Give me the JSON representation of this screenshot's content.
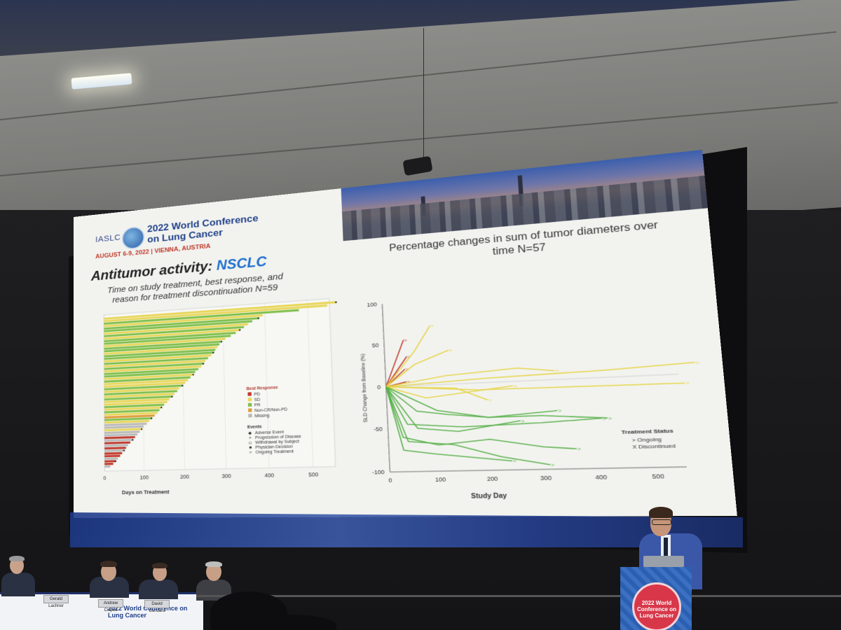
{
  "slide": {
    "iaslc": "IASLC",
    "conference_title": "2022 World Conference on Lung Cancer",
    "conference_date": "AUGUST 6-9, 2022 | VIENNA, AUSTRIA",
    "title_main": "Antitumor activity: ",
    "title_accent": "NSCLC",
    "left_subtitle": "Time on study treatment, best response, and reason for treatment discontinuation N=59",
    "right_subtitle": "Percentage changes in sum of tumor diameters over time N=57"
  },
  "chart_data": [
    {
      "type": "bar",
      "title": "Time on study treatment, best response, and reason for treatment discontinuation N=59",
      "xlabel": "Days on Treatment",
      "xlim": [
        0,
        550
      ],
      "x_ticks": [
        "0",
        "100",
        "200",
        "300",
        "400",
        "500"
      ],
      "legend_title_response": "Best Response",
      "legend_response": [
        {
          "label": "PD",
          "color": "#c0392b"
        },
        {
          "label": "SD",
          "color": "#e8d65a"
        },
        {
          "label": "PR",
          "color": "#7fbf4d"
        },
        {
          "label": "Non-CR/Non-PD",
          "color": "#e09a3a"
        },
        {
          "label": "Missing",
          "color": "#b9b9b9"
        }
      ],
      "legend_title_events": "Events",
      "legend_events": [
        {
          "symbol": "◆",
          "label": "Adverse Event"
        },
        {
          "symbol": "×",
          "label": "Progression of Disease"
        },
        {
          "symbol": "◇",
          "label": "Withdrawal by Subject"
        },
        {
          "symbol": "■",
          "label": "Physician Decision"
        },
        {
          "symbol": ">",
          "label": "Ongoing Treatment"
        }
      ],
      "bars_days": [
        565,
        545,
        480,
        395,
        385,
        370,
        360,
        350,
        340,
        330,
        318,
        305,
        295,
        290,
        285,
        280,
        275,
        270,
        262,
        255,
        250,
        245,
        238,
        230,
        225,
        218,
        212,
        205,
        198,
        190,
        185,
        178,
        172,
        165,
        160,
        152,
        145,
        140,
        135,
        128,
        120,
        114,
        108,
        100,
        95,
        90,
        84,
        78,
        72,
        66,
        60,
        55,
        50,
        45,
        40,
        34,
        28,
        22,
        15
      ],
      "bars_response": [
        "SD",
        "SD",
        "PR",
        "SD",
        "PR",
        "PR",
        "SD",
        "PR",
        "SD",
        "PR",
        "PR",
        "SD",
        "PR",
        "PR",
        "SD",
        "PR",
        "PR",
        "SD",
        "PR",
        "SD",
        "PR",
        "SD",
        "PR",
        "PR",
        "SD",
        "PR",
        "SD",
        "SD",
        "PR",
        "SD",
        "PR",
        "SD",
        "PR",
        "SD",
        "SD",
        "PR",
        "SD",
        "PR",
        "SD",
        "Non-CR/Non-PD",
        "PR",
        "SD",
        "Missing",
        "Missing",
        "SD",
        "Missing",
        "Missing",
        "PD",
        "Missing",
        "PD",
        "Missing",
        "PD",
        "Missing",
        "PD",
        "PD",
        "Missing",
        "PD",
        "PD",
        "Missing"
      ]
    },
    {
      "type": "line",
      "title": "Percentage changes in sum of tumor diameters over time N=57",
      "xlabel": "Study Day",
      "ylabel": "SLD Change from Baseline (%)",
      "xlim": [
        0,
        550
      ],
      "ylim": [
        -100,
        100
      ],
      "x_ticks": [
        "0",
        "100",
        "200",
        "300",
        "400",
        "500"
      ],
      "y_ticks": [
        "100",
        "50",
        "0",
        "-50",
        "-100"
      ],
      "legend_title": "Treatment Status",
      "legend_entries": [
        "> Ongoing",
        "X Discontinued"
      ],
      "series": [
        {
          "status": "PD",
          "x": [
            0,
            40
          ],
          "y": [
            0,
            55
          ]
        },
        {
          "status": "PD",
          "x": [
            0,
            45
          ],
          "y": [
            0,
            35
          ]
        },
        {
          "status": "PD",
          "x": [
            0,
            40
          ],
          "y": [
            0,
            20
          ]
        },
        {
          "status": "PD",
          "x": [
            0,
            42
          ],
          "y": [
            0,
            5
          ]
        },
        {
          "status": "SD",
          "x": [
            0,
            60,
            95
          ],
          "y": [
            0,
            40,
            70
          ]
        },
        {
          "status": "SD",
          "x": [
            0,
            60,
            130
          ],
          "y": [
            0,
            25,
            40
          ]
        },
        {
          "status": "SD",
          "x": [
            0,
            120,
            260,
            330
          ],
          "y": [
            0,
            10,
            15,
            10
          ]
        },
        {
          "status": "SD",
          "x": [
            0,
            200,
            420,
            580
          ],
          "y": [
            0,
            5,
            8,
            12
          ]
        },
        {
          "status": "SD",
          "x": [
            0,
            180,
            560
          ],
          "y": [
            0,
            -8,
            -10
          ]
        },
        {
          "status": "SD",
          "x": [
            0,
            140,
            200
          ],
          "y": [
            0,
            -5,
            -20
          ]
        },
        {
          "status": "SD",
          "x": [
            0,
            80,
            250
          ],
          "y": [
            0,
            -15,
            -5
          ]
        },
        {
          "status": "PR",
          "x": [
            0,
            60,
            120,
            200,
            300,
            420
          ],
          "y": [
            0,
            -30,
            -35,
            -40,
            -40,
            -45
          ]
        },
        {
          "status": "PR",
          "x": [
            0,
            40,
            150,
            300,
            410
          ],
          "y": [
            0,
            -45,
            -50,
            -48,
            -45
          ]
        },
        {
          "status": "PR",
          "x": [
            0,
            30,
            100,
            200,
            300,
            360
          ],
          "y": [
            0,
            -60,
            -70,
            -65,
            -75,
            -78
          ]
        },
        {
          "status": "PR",
          "x": [
            0,
            40,
            130,
            220,
            310
          ],
          "y": [
            0,
            -65,
            -70,
            -85,
            -95
          ]
        },
        {
          "status": "PR",
          "x": [
            0,
            60,
            140,
            260
          ],
          "y": [
            0,
            -50,
            -55,
            -45
          ]
        },
        {
          "status": "PR",
          "x": [
            0,
            30,
            90,
            240
          ],
          "y": [
            0,
            -75,
            -80,
            -90
          ]
        },
        {
          "status": "PR",
          "x": [
            0,
            100,
            200,
            330
          ],
          "y": [
            0,
            -30,
            -40,
            -35
          ]
        }
      ]
    }
  ],
  "panel": {
    "moderator_names": [
      "Gerald Lachner",
      "Andrew Ciupek",
      "David Gandara"
    ],
    "table_logo": "2022 World Conference on Lung Cancer",
    "podium_logo": "2022 World Conference on Lung Cancer"
  }
}
